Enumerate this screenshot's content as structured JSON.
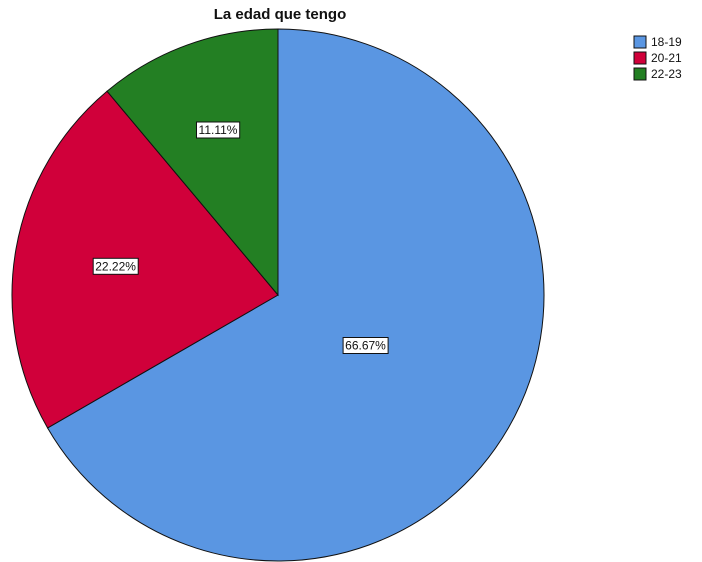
{
  "chart_data": {
    "type": "pie",
    "title": "La edad que tengo",
    "categories": [
      "18-19",
      "20-21",
      "22-23"
    ],
    "values": [
      66.67,
      22.22,
      11.11
    ],
    "data_labels": [
      "66.67%",
      "22.22%",
      "11.11%"
    ],
    "colors": [
      "#5a96e2",
      "#d0003a",
      "#237f23"
    ],
    "start_angle": "12 o'clock",
    "direction": "clockwise",
    "legend_position": "top-right"
  }
}
